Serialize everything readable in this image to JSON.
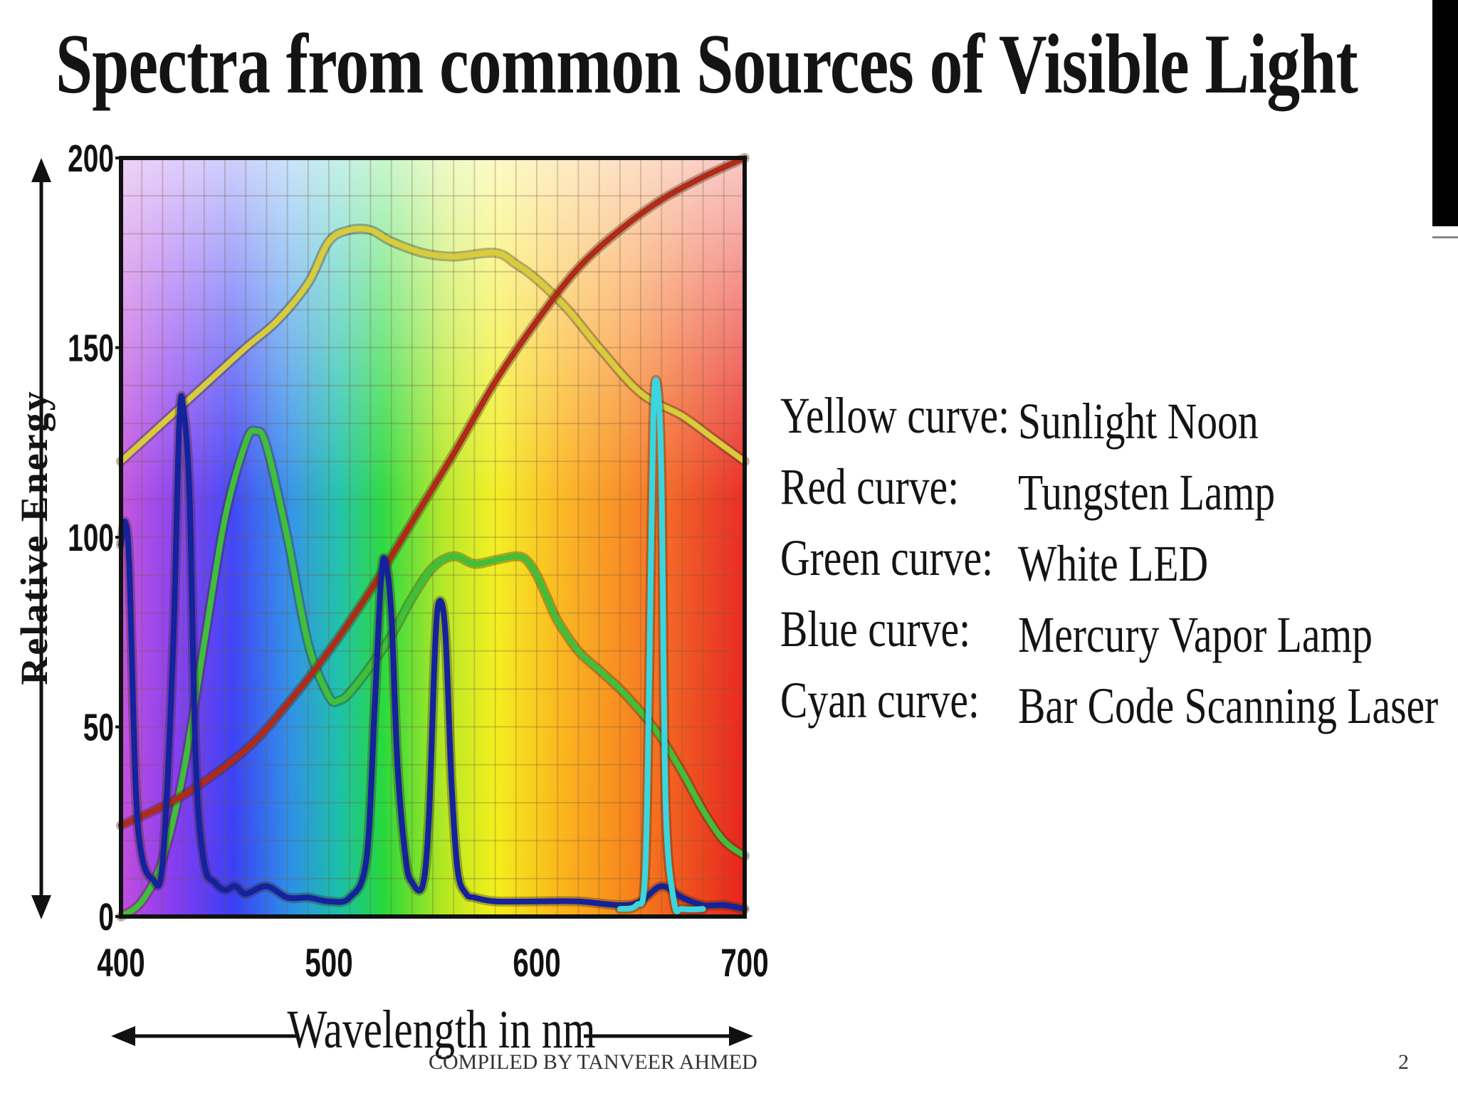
{
  "slide": {
    "title": "Spectra from common Sources of Visible Light",
    "footer": "COMPILED BY TANVEER AHMED",
    "page_number": "2"
  },
  "legend": [
    {
      "label": "Yellow curve:",
      "value": "Sunlight Noon",
      "color": "#d8cc3a"
    },
    {
      "label": "Red curve:",
      "value": "Tungsten Lamp",
      "color": "#b12a18"
    },
    {
      "label": "Green curve:",
      "value": "White LED",
      "color": "#3fbf3a"
    },
    {
      "label": "Blue curve:",
      "value": "Mercury Vapor Lamp",
      "color": "#14229e"
    },
    {
      "label": "Cyan curve:",
      "value": "Bar Code Scanning Laser",
      "color": "#39d6e0"
    }
  ],
  "chart_data": {
    "type": "line",
    "title": "",
    "xlabel": "Wavelength in nm",
    "ylabel": "Relative Energy",
    "xlim": [
      400,
      700
    ],
    "ylim": [
      0,
      200
    ],
    "x_ticks": [
      "400",
      "500",
      "600",
      "700"
    ],
    "y_ticks": [
      "0",
      "50",
      "100",
      "150",
      "200"
    ],
    "grid": true,
    "series": [
      {
        "name": "Sunlight Noon",
        "color": "#d8cc3a",
        "x": [
          400,
          420,
          440,
          460,
          475,
          490,
          500,
          510,
          520,
          530,
          545,
          560,
          580,
          590,
          600,
          615,
          630,
          650,
          670,
          685,
          700
        ],
        "y": [
          120,
          130,
          140,
          150,
          157,
          167,
          178,
          181,
          181,
          178,
          175,
          174,
          175,
          172,
          168,
          160,
          150,
          138,
          132,
          126,
          120
        ]
      },
      {
        "name": "Tungsten Lamp",
        "color": "#b12a18",
        "x": [
          400,
          430,
          460,
          480,
          500,
          520,
          540,
          560,
          580,
          600,
          620,
          640,
          660,
          680,
          700
        ],
        "y": [
          24,
          32,
          44,
          56,
          70,
          86,
          104,
          122,
          141,
          157,
          171,
          181,
          189,
          195,
          200
        ]
      },
      {
        "name": "White LED",
        "color": "#3fbf3a",
        "x": [
          400,
          410,
          420,
          430,
          440,
          450,
          460,
          465,
          470,
          480,
          490,
          500,
          505,
          510,
          520,
          530,
          540,
          550,
          560,
          570,
          580,
          590,
          595,
          600,
          605,
          610,
          620,
          630,
          640,
          650,
          660,
          670,
          680,
          690,
          700
        ],
        "y": [
          0,
          4,
          15,
          38,
          72,
          105,
          125,
          128,
          124,
          100,
          72,
          58,
          57,
          59,
          66,
          74,
          84,
          92,
          95,
          93,
          94,
          95,
          94,
          90,
          84,
          78,
          70,
          65,
          60,
          54,
          47,
          38,
          28,
          20,
          16
        ]
      },
      {
        "name": "Mercury Vapor Lamp",
        "color": "#14229e",
        "x": [
          400,
          402,
          404,
          407,
          410,
          415,
          420,
          425,
          428,
          430,
          433,
          436,
          440,
          445,
          450,
          455,
          460,
          470,
          480,
          490,
          500,
          510,
          518,
          522,
          525,
          527,
          530,
          533,
          537,
          540,
          545,
          548,
          551,
          553,
          556,
          559,
          562,
          566,
          570,
          580,
          600,
          620,
          640,
          650,
          660,
          670,
          680,
          690,
          700
        ],
        "y": [
          98,
          104,
          92,
          35,
          16,
          10,
          14,
          70,
          130,
          134,
          110,
          40,
          14,
          9,
          7,
          8,
          6,
          8,
          5,
          5,
          4,
          5,
          15,
          55,
          88,
          94,
          80,
          40,
          15,
          9,
          8,
          25,
          70,
          83,
          75,
          35,
          12,
          6,
          5,
          4,
          4,
          4,
          3,
          4,
          8,
          5,
          3,
          3,
          2
        ]
      },
      {
        "name": "Bar Code Scanning Laser",
        "color": "#39d6e0",
        "x": [
          640,
          648,
          652,
          654,
          656,
          658,
          660,
          662,
          666,
          670,
          680
        ],
        "y": [
          2,
          3,
          10,
          60,
          130,
          140,
          115,
          30,
          4,
          2,
          2
        ]
      }
    ]
  }
}
